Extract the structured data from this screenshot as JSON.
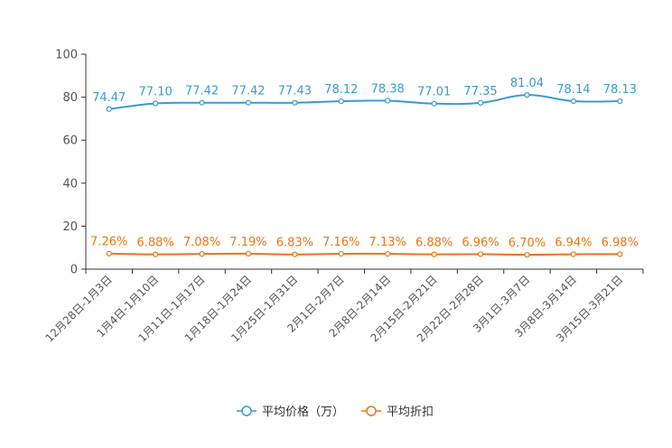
{
  "chart_data": {
    "type": "line",
    "categories": [
      "12月28日-1月3日",
      "1月4日-1月10日",
      "1月11日-1月17日",
      "1月18日-1月24日",
      "1月25日-1月31日",
      "2月1日-2月7日",
      "2月8日-2月14日",
      "2月15日-2月21日",
      "2月22日-2月28日",
      "3月1日-3月7日",
      "3月8日-3月14日",
      "3月15日-3月21日"
    ],
    "ylim": [
      0,
      100
    ],
    "yticks": [
      "0",
      "20",
      "40",
      "60",
      "80",
      "100"
    ],
    "ytick_values": [
      0,
      20,
      40,
      60,
      80,
      100
    ],
    "series": [
      {
        "name": "平均价格（万）",
        "color": "#3a9bd1",
        "values": [
          74.47,
          77.1,
          77.42,
          77.42,
          77.43,
          78.12,
          78.38,
          77.01,
          77.35,
          81.04,
          78.14,
          78.13
        ],
        "labels": [
          "74.47",
          "77.10",
          "77.42",
          "77.42",
          "77.43",
          "78.12",
          "78.38",
          "77.01",
          "77.35",
          "81.04",
          "78.14",
          "78.13"
        ]
      },
      {
        "name": "平均折扣",
        "color": "#f0750f",
        "values": [
          7.26,
          6.88,
          7.08,
          7.19,
          6.83,
          7.16,
          7.13,
          6.88,
          6.96,
          6.7,
          6.94,
          6.98
        ],
        "labels": [
          "7.26%",
          "6.88%",
          "7.08%",
          "7.19%",
          "6.83%",
          "7.16%",
          "7.13%",
          "6.88%",
          "6.96%",
          "6.70%",
          "6.94%",
          "6.98%"
        ]
      }
    ]
  }
}
